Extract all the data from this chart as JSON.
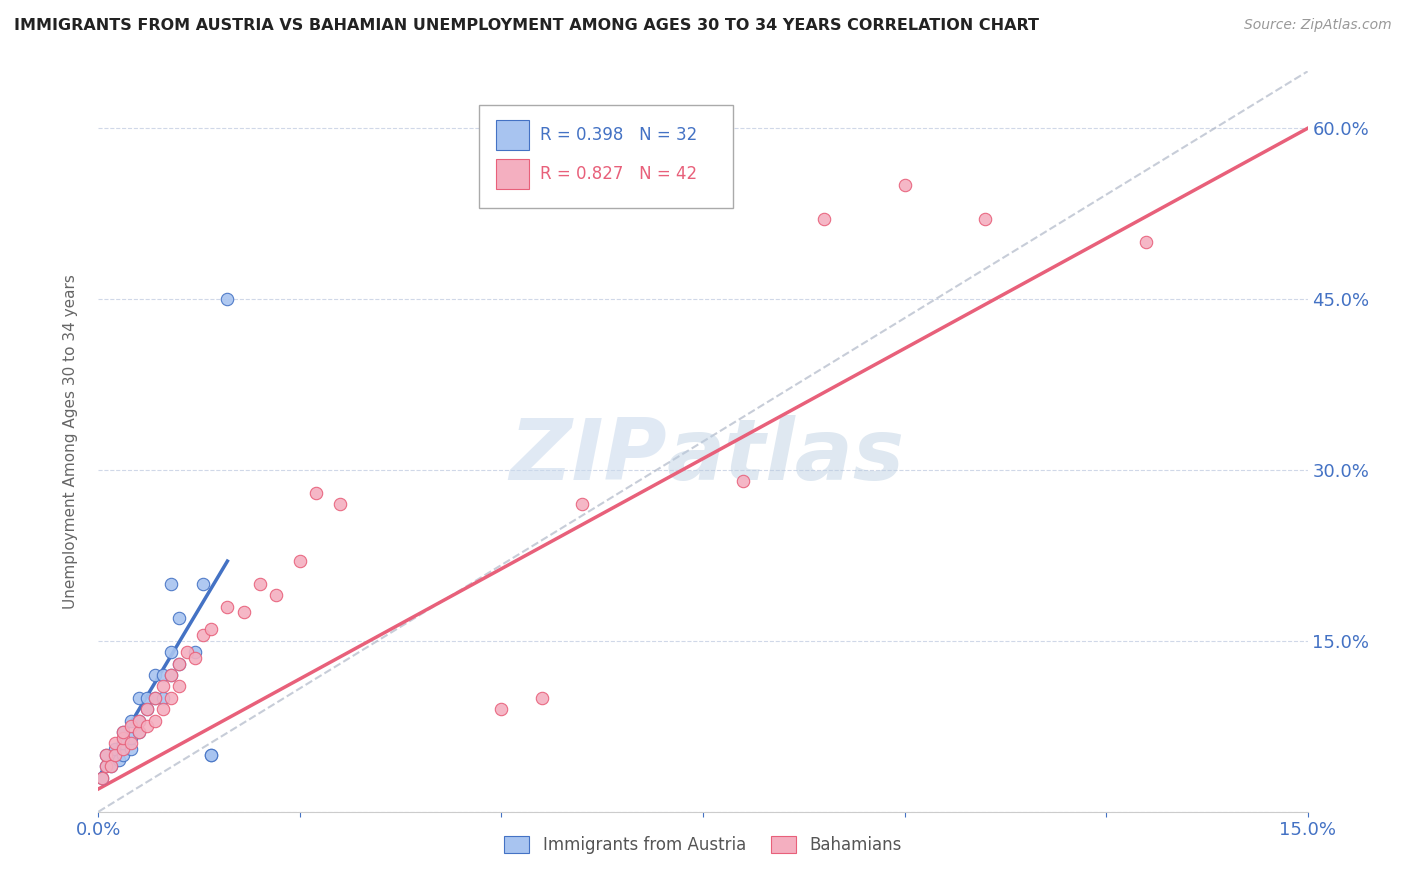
{
  "title": "IMMIGRANTS FROM AUSTRIA VS BAHAMIAN UNEMPLOYMENT AMONG AGES 30 TO 34 YEARS CORRELATION CHART",
  "source": "Source: ZipAtlas.com",
  "ylabel": "Unemployment Among Ages 30 to 34 years",
  "xlim": [
    0.0,
    0.15
  ],
  "ylim": [
    0.0,
    0.65
  ],
  "xticks": [
    0.0,
    0.025,
    0.05,
    0.075,
    0.1,
    0.125,
    0.15
  ],
  "xtick_labels": [
    "0.0%",
    "",
    "",
    "",
    "",
    "",
    "15.0%"
  ],
  "yticks": [
    0.0,
    0.15,
    0.3,
    0.45,
    0.6
  ],
  "ytick_labels": [
    "",
    "15.0%",
    "30.0%",
    "45.0%",
    "60.0%"
  ],
  "color_austria": "#a8c4f0",
  "color_bahamian": "#f4afc0",
  "color_austria_edge": "#4472c4",
  "color_bahamian_edge": "#e8607a",
  "color_austria_trend": "#4472c4",
  "color_bahamian_trend": "#e8607a",
  "color_diag": "#b0b8c8",
  "color_axis_labels": "#4472c4",
  "watermark_zip": "ZIP",
  "watermark_atlas": "atlas",
  "background_color": "#ffffff",
  "austria_x": [
    0.0005,
    0.001,
    0.001,
    0.0015,
    0.002,
    0.002,
    0.0025,
    0.003,
    0.003,
    0.003,
    0.004,
    0.004,
    0.004,
    0.005,
    0.005,
    0.005,
    0.006,
    0.006,
    0.007,
    0.007,
    0.008,
    0.008,
    0.009,
    0.009,
    0.009,
    0.01,
    0.01,
    0.012,
    0.013,
    0.014,
    0.014,
    0.016
  ],
  "austria_y": [
    0.03,
    0.04,
    0.05,
    0.04,
    0.05,
    0.055,
    0.045,
    0.05,
    0.06,
    0.07,
    0.055,
    0.065,
    0.08,
    0.07,
    0.08,
    0.1,
    0.09,
    0.1,
    0.1,
    0.12,
    0.1,
    0.12,
    0.12,
    0.14,
    0.2,
    0.13,
    0.17,
    0.14,
    0.2,
    0.05,
    0.05,
    0.45
  ],
  "bahamian_x": [
    0.0005,
    0.001,
    0.001,
    0.0015,
    0.002,
    0.002,
    0.003,
    0.003,
    0.003,
    0.004,
    0.004,
    0.005,
    0.005,
    0.006,
    0.006,
    0.007,
    0.007,
    0.008,
    0.008,
    0.009,
    0.009,
    0.01,
    0.01,
    0.011,
    0.012,
    0.013,
    0.014,
    0.016,
    0.018,
    0.02,
    0.022,
    0.025,
    0.027,
    0.03,
    0.05,
    0.055,
    0.06,
    0.08,
    0.09,
    0.1,
    0.11,
    0.13
  ],
  "bahamian_y": [
    0.03,
    0.04,
    0.05,
    0.04,
    0.05,
    0.06,
    0.055,
    0.065,
    0.07,
    0.06,
    0.075,
    0.07,
    0.08,
    0.075,
    0.09,
    0.08,
    0.1,
    0.09,
    0.11,
    0.1,
    0.12,
    0.11,
    0.13,
    0.14,
    0.135,
    0.155,
    0.16,
    0.18,
    0.175,
    0.2,
    0.19,
    0.22,
    0.28,
    0.27,
    0.09,
    0.1,
    0.27,
    0.29,
    0.52,
    0.55,
    0.52,
    0.5
  ],
  "austria_trend_x": [
    0.0,
    0.016
  ],
  "austria_trend_y": [
    0.03,
    0.22
  ],
  "bahamian_trend_x": [
    0.0,
    0.15
  ],
  "bahamian_trend_y": [
    0.02,
    0.6
  ],
  "diag_trend_x": [
    0.0,
    0.15
  ],
  "diag_trend_y": [
    0.0,
    0.65
  ]
}
